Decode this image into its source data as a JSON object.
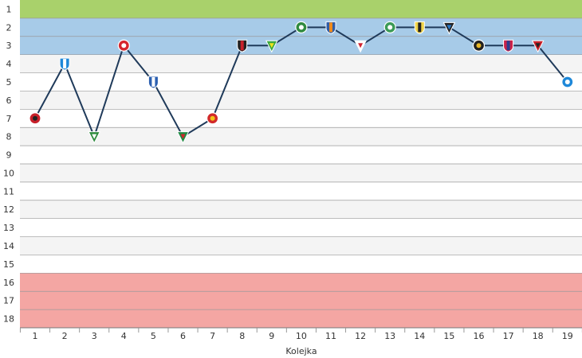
{
  "chart_data": {
    "type": "line",
    "xlabel": "Kolejka",
    "ylabel": "",
    "x": [
      1,
      2,
      3,
      4,
      5,
      6,
      7,
      8,
      9,
      10,
      11,
      12,
      13,
      14,
      15,
      16,
      17,
      18,
      19
    ],
    "y_ticks": [
      1,
      2,
      3,
      4,
      5,
      6,
      7,
      8,
      9,
      10,
      11,
      12,
      13,
      14,
      15,
      16,
      17,
      18
    ],
    "ylim": [
      0.5,
      18.5
    ],
    "y_inverted": true,
    "series": [
      {
        "values": [
          7,
          4,
          8,
          3,
          5,
          8,
          7,
          3,
          3,
          2,
          2,
          3,
          2,
          2,
          2,
          3,
          3,
          3,
          5
        ]
      }
    ],
    "bands": [
      {
        "from": 1,
        "to": 1,
        "color": "#a9d16b"
      },
      {
        "from": 2,
        "to": 3,
        "color": "#a7cbe8"
      },
      {
        "from": 16,
        "to": 18,
        "color": "#f4a6a3"
      }
    ],
    "line_color": "#1f3a5a",
    "grid": true,
    "opponent_icons": [
      "badge-red-black-icon",
      "badge-blue-white-stripes-icon",
      "badge-green-white-icon",
      "badge-red-white-icon",
      "badge-blue-white-icon",
      "badge-green-red-icon",
      "badge-red-yellow-icon",
      "badge-black-red-icon",
      "badge-green-yellow-icon",
      "badge-green-white-red-icon",
      "badge-blue-orange-icon",
      "badge-white-red-blue-icon",
      "badge-green-white-round-icon",
      "badge-yellow-black-round-icon",
      "badge-gear-blue-icon",
      "badge-black-yellow-shield-icon",
      "badge-red-blue-icon",
      "badge-red-black-round-icon",
      "badge-blue-white-stripes-icon"
    ],
    "icon_colors": [
      [
        "#c8202a",
        "#222222"
      ],
      [
        "#1e88d9",
        "#ffffff"
      ],
      [
        "#2e8b3d",
        "#ffffff"
      ],
      [
        "#d6262e",
        "#ffffff"
      ],
      [
        "#2b5fb0",
        "#ffffff"
      ],
      [
        "#1f8a43",
        "#d1262d"
      ],
      [
        "#d22a2a",
        "#f2c318"
      ],
      [
        "#222222",
        "#c8202a"
      ],
      [
        "#38a843",
        "#f1e21a"
      ],
      [
        "#2f8a3f",
        "#ffffff"
      ],
      [
        "#2f5ea8",
        "#f08a1b"
      ],
      [
        "#ffffff",
        "#cf2330"
      ],
      [
        "#3b9a57",
        "#ffffff"
      ],
      [
        "#f1d54a",
        "#222222"
      ],
      [
        "#222222",
        "#2c79c4"
      ],
      [
        "#222222",
        "#e9b728"
      ],
      [
        "#c9224a",
        "#2b3d8f"
      ],
      [
        "#c8202a",
        "#222222"
      ],
      [
        "#1e88d9",
        "#ffffff"
      ]
    ]
  }
}
